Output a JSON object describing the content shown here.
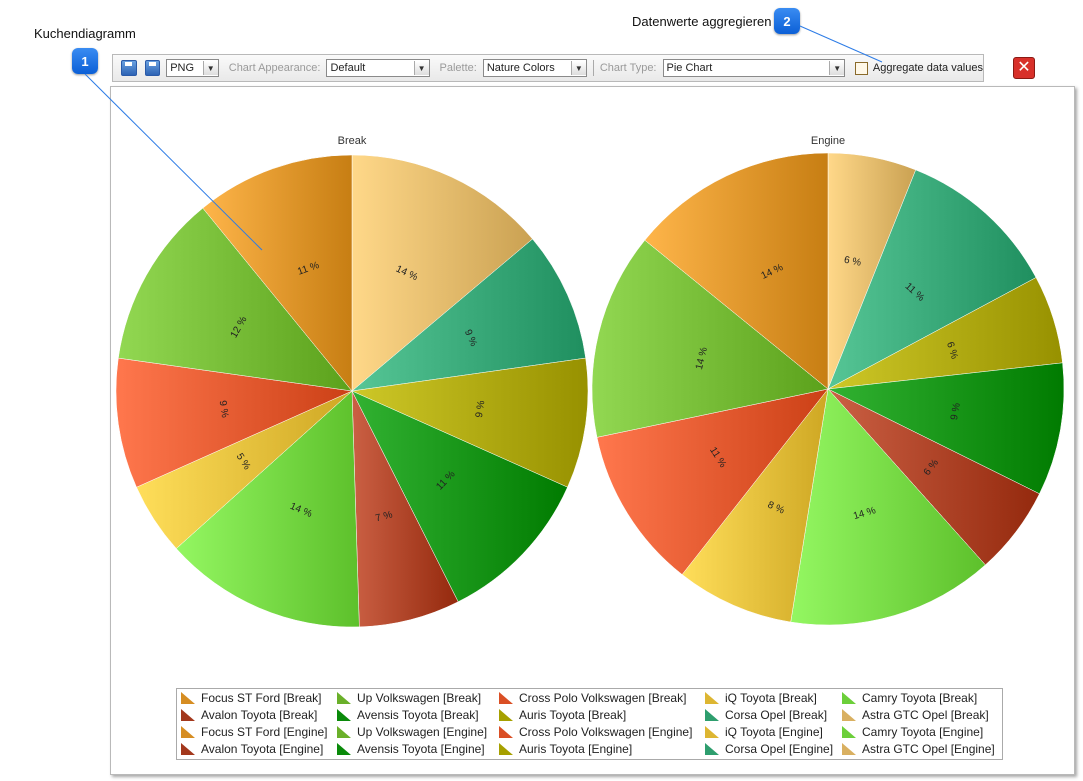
{
  "callouts": [
    {
      "number": "1",
      "label": "Kuchendiagramm"
    },
    {
      "number": "2",
      "label": "Datenwerte aggregieren"
    }
  ],
  "toolbar": {
    "save_icon": "save-icon",
    "save_as_icon": "save-as-icon",
    "format_value": "PNG",
    "appearance_label": "Chart Appearance:",
    "appearance_value": "Default",
    "palette_label": "Palette:",
    "palette_value": "Nature Colors",
    "type_label": "Chart Type:",
    "type_value": "Pie Chart",
    "aggregate_label": "Aggregate data values",
    "aggregate_checked": false,
    "close_icon": "close-icon"
  },
  "chart_data": [
    {
      "type": "pie",
      "title": "Break",
      "slices": [
        {
          "label": "14 %",
          "value": 14,
          "color": "#d9b061"
        },
        {
          "label": "9 %",
          "value": 9,
          "color": "#2e9e6e"
        },
        {
          "label": "9 %",
          "value": 9,
          "color": "#a6a000"
        },
        {
          "label": "11 %",
          "value": 11,
          "color": "#0a8a0a"
        },
        {
          "label": "7 %",
          "value": 7,
          "color": "#a3381c"
        },
        {
          "label": "14 %",
          "value": 14,
          "color": "#6ccf3a"
        },
        {
          "label": "5 %",
          "value": 5,
          "color": "#ddb632"
        },
        {
          "label": "9 %",
          "value": 9,
          "color": "#da4f25"
        },
        {
          "label": "12 %",
          "value": 12,
          "color": "#6ab02a"
        },
        {
          "label": "11 %",
          "value": 11,
          "color": "#d68d22"
        }
      ]
    },
    {
      "type": "pie",
      "title": "Engine",
      "slices": [
        {
          "label": "6 %",
          "value": 6,
          "color": "#d9b061"
        },
        {
          "label": "11 %",
          "value": 11,
          "color": "#2e9e6e"
        },
        {
          "label": "6 %",
          "value": 6,
          "color": "#a6a000"
        },
        {
          "label": "9 %",
          "value": 9,
          "color": "#0a8a0a"
        },
        {
          "label": "6 %",
          "value": 6,
          "color": "#a3381c"
        },
        {
          "label": "14 %",
          "value": 14,
          "color": "#6ccf3a"
        },
        {
          "label": "8 %",
          "value": 8,
          "color": "#ddb632"
        },
        {
          "label": "11 %",
          "value": 11,
          "color": "#da4f25"
        },
        {
          "label": "14 %",
          "value": 14,
          "color": "#6ab02a"
        },
        {
          "label": "14 %",
          "value": 14,
          "color": "#d68d22"
        }
      ]
    }
  ],
  "legend": [
    {
      "label": "Focus ST Ford [Break]",
      "color": "#d68d22"
    },
    {
      "label": "Up Volkswagen [Break]",
      "color": "#6ab02a"
    },
    {
      "label": "Cross Polo Volkswagen [Break]",
      "color": "#da4f25"
    },
    {
      "label": "iQ Toyota [Break]",
      "color": "#ddb632"
    },
    {
      "label": "Camry Toyota [Break]",
      "color": "#6ccf3a"
    },
    {
      "label": "Avalon Toyota [Break]",
      "color": "#a3381c"
    },
    {
      "label": "Avensis Toyota [Break]",
      "color": "#0a8a0a"
    },
    {
      "label": "Auris Toyota [Break]",
      "color": "#a6a000"
    },
    {
      "label": "Corsa Opel [Break]",
      "color": "#2e9e6e"
    },
    {
      "label": "Astra GTC Opel [Break]",
      "color": "#d9b061"
    },
    {
      "label": "Focus ST Ford [Engine]",
      "color": "#d68d22"
    },
    {
      "label": "Up Volkswagen [Engine]",
      "color": "#6ab02a"
    },
    {
      "label": "Cross Polo Volkswagen [Engine]",
      "color": "#da4f25"
    },
    {
      "label": "iQ Toyota [Engine]",
      "color": "#ddb632"
    },
    {
      "label": "Camry Toyota [Engine]",
      "color": "#6ccf3a"
    },
    {
      "label": "Avalon Toyota [Engine]",
      "color": "#a3381c"
    },
    {
      "label": "Avensis Toyota [Engine]",
      "color": "#0a8a0a"
    },
    {
      "label": "Auris Toyota [Engine]",
      "color": "#a6a000"
    },
    {
      "label": "Corsa Opel [Engine]",
      "color": "#2e9e6e"
    },
    {
      "label": "Astra GTC Opel [Engine]",
      "color": "#d9b061"
    }
  ]
}
